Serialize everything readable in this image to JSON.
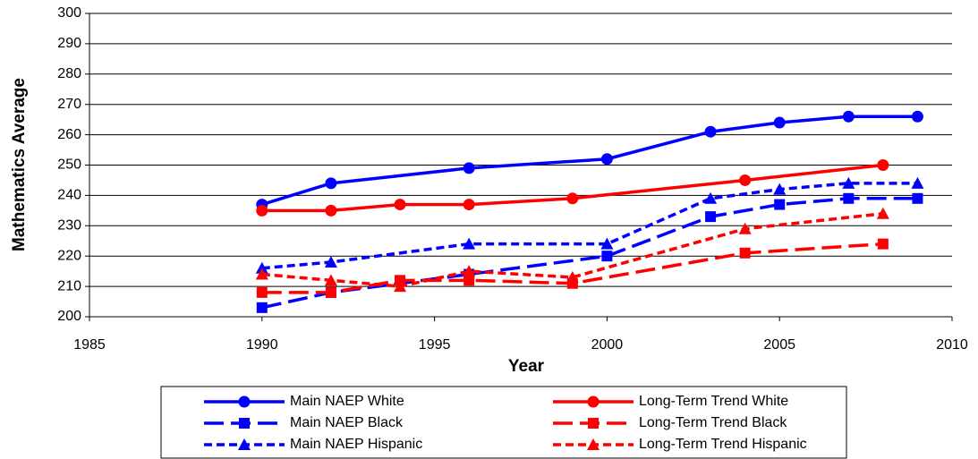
{
  "chart_data": {
    "type": "line",
    "x_label": "Year",
    "y_label": "Mathematics Average",
    "xlim": [
      1985,
      2010
    ],
    "xticks": [
      1985,
      1990,
      1995,
      2000,
      2005,
      2010
    ],
    "ylim": [
      200,
      300
    ],
    "yticks": [
      200,
      210,
      220,
      230,
      240,
      250,
      260,
      270,
      280,
      290,
      300
    ],
    "grid": true,
    "legend": "bottom",
    "series": [
      {
        "name": "Main NAEP White",
        "color": "#0000ff",
        "marker": "circle",
        "dash": "solid",
        "x": [
          1990,
          1992,
          1996,
          2000,
          2003,
          2005,
          2007,
          2009
        ],
        "values": [
          237,
          244,
          249,
          252,
          261,
          264,
          266,
          266
        ]
      },
      {
        "name": "Long-Term Trend White",
        "color": "#ff0000",
        "marker": "circle",
        "dash": "solid",
        "x": [
          1990,
          1992,
          1994,
          1996,
          1999,
          2004,
          2008
        ],
        "values": [
          235,
          235,
          237,
          237,
          239,
          245,
          250
        ]
      },
      {
        "name": "Main NAEP Black",
        "color": "#0000ff",
        "marker": "square",
        "dash": "long",
        "x": [
          1990,
          1992,
          1996,
          2000,
          2003,
          2005,
          2007,
          2009
        ],
        "values": [
          203,
          208,
          214,
          220,
          233,
          237,
          239,
          239
        ]
      },
      {
        "name": "Long-Term Trend Black",
        "color": "#ff0000",
        "marker": "square",
        "dash": "long",
        "x": [
          1990,
          1992,
          1994,
          1996,
          1999,
          2004,
          2008
        ],
        "values": [
          208,
          208,
          212,
          212,
          211,
          221,
          224
        ]
      },
      {
        "name": "Main NAEP Hispanic",
        "color": "#0000ff",
        "marker": "triangle",
        "dash": "short",
        "x": [
          1990,
          1992,
          1996,
          2000,
          2003,
          2005,
          2007,
          2009
        ],
        "values": [
          216,
          218,
          224,
          224,
          239,
          242,
          244,
          244
        ]
      },
      {
        "name": "Long-Term Trend Hispanic",
        "color": "#ff0000",
        "marker": "triangle",
        "dash": "short",
        "x": [
          1990,
          1992,
          1994,
          1996,
          1999,
          2004,
          2008
        ],
        "values": [
          214,
          212,
          210,
          215,
          213,
          229,
          234
        ]
      }
    ]
  }
}
